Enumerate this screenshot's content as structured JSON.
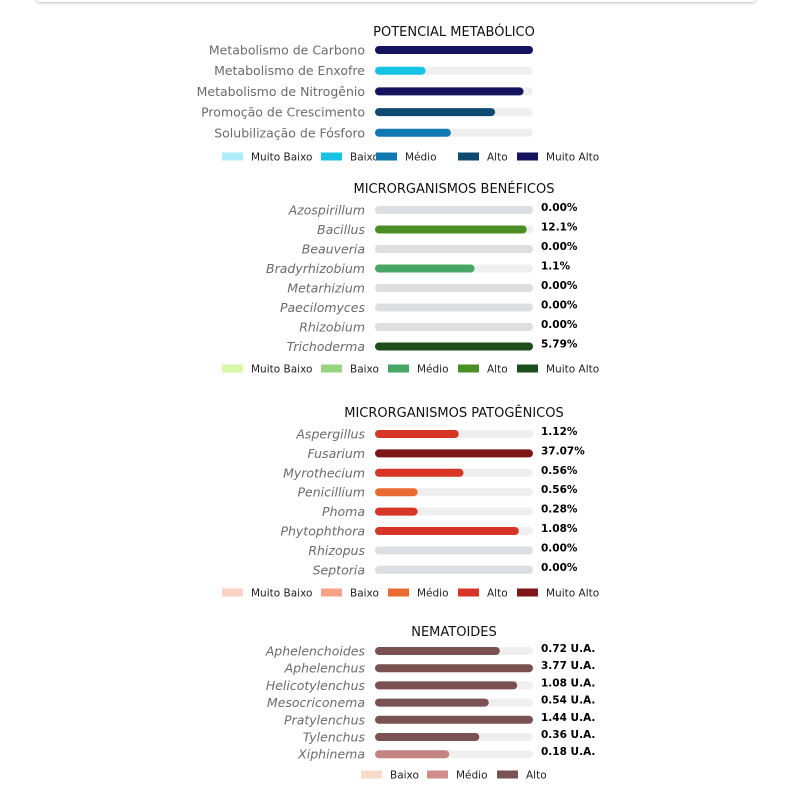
{
  "chart_data": [
    {
      "type": "bar",
      "title": "POTENCIAL METABÓLICO",
      "italic": false,
      "show_values": false,
      "categories": [
        "Metabolismo de Carbono",
        "Metabolismo de Enxofre",
        "Metabolismo de Nitrogênio",
        "Promoção de Crescimento",
        "Solubilização de Fósforo"
      ],
      "levels": [
        1.0,
        0.32,
        0.94,
        0.76,
        0.48
      ],
      "bar_colors": [
        "#15125e",
        "#16c3e4",
        "#15125e",
        "#0e4a70",
        "#1079b2"
      ],
      "value_labels": [
        "",
        "",
        "",
        "",
        ""
      ],
      "legend": [
        {
          "label": "Muito Baixo",
          "color": "#aeeefa"
        },
        {
          "label": "Baixo",
          "color": "#16c3e4"
        },
        {
          "label": "Médio",
          "color": "#1079b2"
        },
        {
          "label": "Alto",
          "color": "#0e4a70"
        },
        {
          "label": "Muito Alto",
          "color": "#15125e"
        }
      ]
    },
    {
      "type": "bar",
      "title": "MICRORGANISMOS BENÉFICOS",
      "italic": true,
      "show_values": true,
      "categories": [
        "Azospirillum",
        "Bacillus",
        "Beauveria",
        "Bradyrhizobium",
        "Metarhizium",
        "Paecilomyces",
        "Rhizobium",
        "Trichoderma"
      ],
      "levels": [
        1.0,
        0.96,
        1.0,
        0.63,
        1.0,
        1.0,
        1.0,
        1.0
      ],
      "bar_colors": [
        "#dcdfe2",
        "#4a8e26",
        "#dcdfe2",
        "#47a663",
        "#dcdfe2",
        "#dcdfe2",
        "#dcdfe2",
        "#1c4d1c"
      ],
      "value_labels": [
        "0.00%",
        "12.1%",
        "0.00%",
        "1.1%",
        "0.00%",
        "0.00%",
        "0.00%",
        "5.79%"
      ],
      "legend": [
        {
          "label": "Muito Baixo",
          "color": "#d8f7a8"
        },
        {
          "label": "Baixo",
          "color": "#9ad480"
        },
        {
          "label": "Médio",
          "color": "#47a663"
        },
        {
          "label": "Alto",
          "color": "#4a8e26"
        },
        {
          "label": "Muito Alto",
          "color": "#1c4d1c"
        }
      ]
    },
    {
      "type": "bar",
      "title": "MICRORGANISMOS PATOGÊNICOS",
      "italic": true,
      "show_values": true,
      "categories": [
        "Aspergillus",
        "Fusarium",
        "Myrothecium",
        "Penicillium",
        "Phoma",
        "Phytophthora",
        "Rhizopus",
        "Septoria"
      ],
      "levels": [
        0.53,
        1.0,
        0.56,
        0.27,
        0.27,
        0.91,
        1.0,
        1.0
      ],
      "bar_colors": [
        "#d73525",
        "#7d1616",
        "#d73525",
        "#ea6a30",
        "#d73525",
        "#d73525",
        "#dcdfe2",
        "#dcdfe2"
      ],
      "value_labels": [
        "1.12%",
        "37.07%",
        "0.56%",
        "0.56%",
        "0.28%",
        "1.08%",
        "0.00%",
        "0.00%"
      ],
      "legend": [
        {
          "label": "Muito Baixo",
          "color": "#fbd3c4"
        },
        {
          "label": "Baixo",
          "color": "#f7a283"
        },
        {
          "label": "Médio",
          "color": "#ea6a30"
        },
        {
          "label": "Alto",
          "color": "#d73525"
        },
        {
          "label": "Muito Alto",
          "color": "#7d1616"
        }
      ]
    },
    {
      "type": "bar",
      "title": "NEMATOIDES",
      "italic": true,
      "show_values": true,
      "categories": [
        "Aphelenchoides",
        "Aphelenchus",
        "Helicotylenchus",
        "Mesocriconema",
        "Pratylenchus",
        "Tylenchus",
        "Xiphinema"
      ],
      "levels": [
        0.79,
        1.0,
        0.9,
        0.72,
        1.0,
        0.66,
        0.47
      ],
      "bar_colors": [
        "#7a5252",
        "#7a5252",
        "#7a5252",
        "#7a5252",
        "#7a5252",
        "#7a5252",
        "#c48484"
      ],
      "value_labels": [
        "0.72 U.A.",
        "3.77 U.A.",
        "1.08 U.A.",
        "0.54 U.A.",
        "1.44 U.A.",
        "0.36 U.A.",
        "0.18 U.A."
      ],
      "legend": [
        {
          "label": "Baixo",
          "color": "#f6dbc8"
        },
        {
          "label": "Médio",
          "color": "#d08d8a"
        },
        {
          "label": "Alto",
          "color": "#7a5252"
        }
      ]
    }
  ]
}
